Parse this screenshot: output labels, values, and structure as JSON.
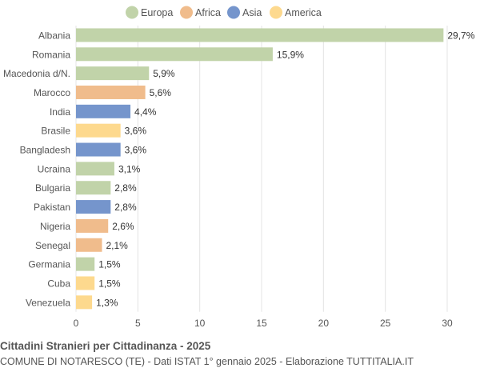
{
  "chart_data": {
    "type": "bar",
    "orientation": "horizontal",
    "categories": [
      "Albania",
      "Romania",
      "Macedonia d/N.",
      "Marocco",
      "India",
      "Brasile",
      "Bangladesh",
      "Ucraina",
      "Bulgaria",
      "Pakistan",
      "Nigeria",
      "Senegal",
      "Germania",
      "Cuba",
      "Venezuela"
    ],
    "values": [
      29.7,
      15.9,
      5.9,
      5.6,
      4.4,
      3.6,
      3.6,
      3.1,
      2.8,
      2.8,
      2.6,
      2.1,
      1.5,
      1.5,
      1.3
    ],
    "value_labels": [
      "29,7%",
      "15,9%",
      "5,9%",
      "5,6%",
      "4,4%",
      "3,6%",
      "3,6%",
      "3,1%",
      "2,8%",
      "2,8%",
      "2,6%",
      "2,1%",
      "1,5%",
      "1,5%",
      "1,3%"
    ],
    "groups": [
      "Europa",
      "Europa",
      "Europa",
      "Africa",
      "Asia",
      "America",
      "Asia",
      "Europa",
      "Europa",
      "Asia",
      "Africa",
      "Africa",
      "Europa",
      "America",
      "America"
    ],
    "legend": {
      "position": "top",
      "items": [
        {
          "name": "Europa",
          "color": "#c1d3a9"
        },
        {
          "name": "Africa",
          "color": "#f0bc8c"
        },
        {
          "name": "Asia",
          "color": "#7595cc"
        },
        {
          "name": "America",
          "color": "#fdd98e"
        }
      ]
    },
    "xlim": [
      0,
      30
    ],
    "xticks": [
      0,
      5,
      10,
      15,
      20,
      25,
      30
    ],
    "grid": true,
    "title": "Cittadini Stranieri per Cittadinanza - 2025",
    "subtitle": "COMUNE DI NOTARESCO (TE) - Dati ISTAT 1° gennaio 2025 - Elaborazione TUTTITALIA.IT"
  }
}
